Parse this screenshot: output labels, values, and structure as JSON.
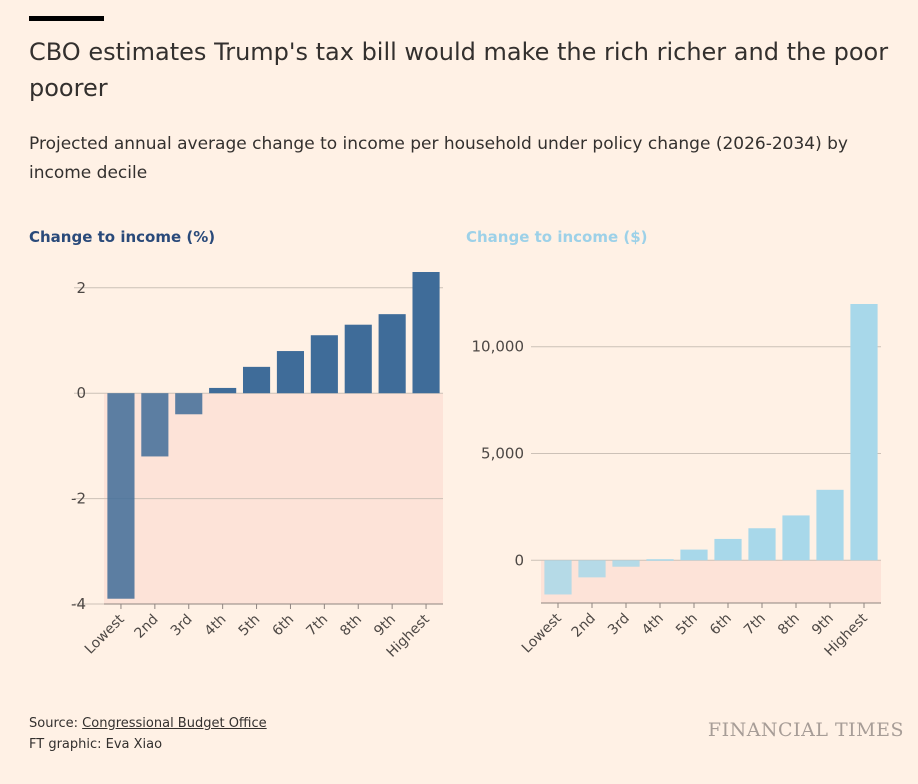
{
  "header": {
    "title": "CBO estimates Trump's tax bill would make the rich richer and the poor poorer",
    "subtitle": "Projected annual average change to income per household under policy change (2026-2034) by income decile"
  },
  "chart_data": [
    {
      "type": "bar",
      "title": "Change to income (%)",
      "color": "#3f6c99",
      "categories": [
        "Lowest",
        "2nd",
        "3rd",
        "4th",
        "5th",
        "6th",
        "7th",
        "8th",
        "9th",
        "Highest"
      ],
      "values": [
        -3.9,
        -1.2,
        -0.4,
        0.1,
        0.5,
        0.8,
        1.1,
        1.3,
        1.5,
        2.3
      ],
      "yticks": [
        {
          "v": 2,
          "label": "2"
        },
        {
          "v": 0,
          "label": "0"
        },
        {
          "v": -2,
          "label": "-2"
        },
        {
          "v": -4,
          "label": "-4"
        }
      ],
      "ylim": [
        -4,
        2.3
      ],
      "negative_region": true,
      "grid": true
    },
    {
      "type": "bar",
      "title": "Change to income ($)",
      "color": "#a8d8ea",
      "categories": [
        "Lowest",
        "2nd",
        "3rd",
        "4th",
        "5th",
        "6th",
        "7th",
        "8th",
        "9th",
        "Highest"
      ],
      "values": [
        -1600,
        -800,
        -300,
        50,
        500,
        1000,
        1500,
        2100,
        3300,
        12000
      ],
      "yticks": [
        {
          "v": 10000,
          "label": "10,000"
        },
        {
          "v": 5000,
          "label": "5,000"
        },
        {
          "v": 0,
          "label": "0"
        }
      ],
      "ylim": [
        -2000,
        12000
      ],
      "negative_region": true,
      "grid": true
    }
  ],
  "footer": {
    "source_prefix": "Source: ",
    "source_link": "Congressional Budget Office",
    "credit": "FT graphic: Eva Xiao",
    "brand": "FINANCIAL TIMES"
  }
}
